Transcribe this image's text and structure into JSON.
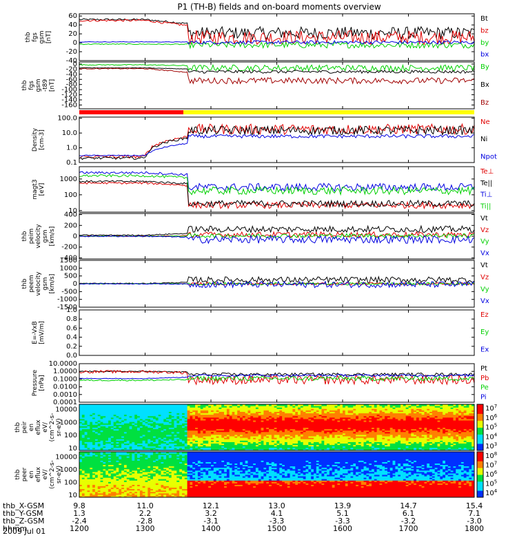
{
  "chart_data": {
    "title": "P1 (TH-B) fields and on-board moments overview",
    "date": "2009 Jul 01",
    "orbit_table": {
      "row_labels": [
        "thb_X-GSM",
        "thb_Y-GSM",
        "thb_Z-GSM",
        "hhmm"
      ],
      "columns": [
        [
          "9.8",
          "1.3",
          "-2.4",
          "1200"
        ],
        [
          "11.0",
          "2.2",
          "-2.8",
          "1300"
        ],
        [
          "12.1",
          "3.2",
          "-3.1",
          "1400"
        ],
        [
          "13.0",
          "4.1",
          "-3.3",
          "1500"
        ],
        [
          "13.9",
          "5.1",
          "-3.3",
          "1600"
        ],
        [
          "14.7",
          "6.1",
          "-3.2",
          "1700"
        ],
        [
          "15.4",
          "7.1",
          "-3.0",
          "1800"
        ]
      ]
    },
    "panels": [
      {
        "type": "line",
        "ylabel": [
          "thb",
          "fgs",
          "gsm",
          "[nT]"
        ],
        "yscale": "linear",
        "yticks": [
          "-40",
          "-20",
          "0",
          "20",
          "40",
          "60"
        ],
        "ylim": [
          -40,
          65
        ],
        "series": [
          {
            "name": "Bt",
            "color": "#000000",
            "quiet": 52,
            "active": 22,
            "noise": 14
          },
          {
            "name": "bz",
            "color": "#e00000",
            "quiet": 50,
            "active": 12,
            "noise": 16
          },
          {
            "name": "by",
            "color": "#00d000",
            "quiet": -3,
            "active": -5,
            "noise": 7
          },
          {
            "name": "bx",
            "color": "#0000e0",
            "quiet": 2,
            "active": 1,
            "noise": 4
          }
        ]
      },
      {
        "type": "line",
        "ylabel": [
          "thb",
          "fgs",
          "gsm",
          "-t89",
          "[nT]"
        ],
        "yscale": "linear",
        "yticks": [
          "-160",
          "-140",
          "-120",
          "-100",
          "-80",
          "-60",
          "-40",
          "-20",
          "0"
        ],
        "ylim": [
          -175,
          8
        ],
        "series": [
          {
            "name": "By",
            "color": "#00d000",
            "quiet": -3,
            "active": -15,
            "noise": 12
          },
          {
            "name": "Bx",
            "color": "#000000",
            "quiet": -15,
            "active": -30,
            "noise": 6
          },
          {
            "name": "Bz",
            "color": "#a00000",
            "quiet": -18,
            "active": -65,
            "noise": 12
          }
        ]
      },
      {
        "type": "line",
        "ylabel": [
          "Density",
          "[cm-3]"
        ],
        "yscale": "log",
        "yticks": [
          "0.1",
          "1.0",
          "10.0",
          "100.0"
        ],
        "ylim": [
          0.1,
          120
        ],
        "series": [
          {
            "name": "Ne",
            "color": "#e00000",
            "quiet": 0.25,
            "active": 18,
            "noise": 0.35
          },
          {
            "name": "Ni",
            "color": "#000000",
            "quiet": 0.2,
            "active": 15,
            "noise": 0.3
          },
          {
            "name": "Npot",
            "color": "#0000e0",
            "quiet": 0.3,
            "active": 6,
            "noise": 0.12
          }
        ]
      },
      {
        "type": "line",
        "ylabel": [
          "magt3",
          "[eV]"
        ],
        "yscale": "log",
        "yticks": [
          "10",
          "100",
          "1000"
        ],
        "ylim": [
          8,
          6000
        ],
        "series": [
          {
            "name": "Te⊥",
            "color": "#e00000",
            "quiet": 550,
            "active": 22,
            "noise": 0.2
          },
          {
            "name": "Te||",
            "color": "#000000",
            "quiet": 700,
            "active": 28,
            "noise": 0.2
          },
          {
            "name": "Ti⊥",
            "color": "#0000e0",
            "quiet": 2500,
            "active": 300,
            "noise": 0.25
          },
          {
            "name": "Ti||",
            "color": "#00d000",
            "quiet": 1600,
            "active": 180,
            "noise": 0.25
          }
        ]
      },
      {
        "type": "line",
        "ylabel": [
          "thb",
          "peim",
          "velocity",
          "gsm",
          "[km/s]"
        ],
        "yscale": "linear",
        "yticks": [
          "-400",
          "-200",
          "0",
          "200",
          "400"
        ],
        "ylim": [
          -420,
          420
        ],
        "series": [
          {
            "name": "Vt",
            "color": "#000000",
            "quiet": 20,
            "active": 130,
            "noise": 60
          },
          {
            "name": "Vz",
            "color": "#e00000",
            "quiet": 0,
            "active": 30,
            "noise": 50
          },
          {
            "name": "Vy",
            "color": "#00d000",
            "quiet": 0,
            "active": 10,
            "noise": 40
          },
          {
            "name": "Vx",
            "color": "#0000e0",
            "quiet": 0,
            "active": -60,
            "noise": 70
          }
        ]
      },
      {
        "type": "line",
        "ylabel": [
          "thb",
          "peem",
          "velocity",
          "gsm",
          "[km/s]"
        ],
        "yscale": "linear",
        "yticks": [
          "-1500",
          "-1000",
          "-500",
          "0",
          "500",
          "1000",
          "1500"
        ],
        "ylim": [
          -1500,
          1500
        ],
        "series": [
          {
            "name": "Vt",
            "color": "#000000",
            "quiet": 20,
            "active": 250,
            "noise": 200
          },
          {
            "name": "Vz",
            "color": "#e00000",
            "quiet": 0,
            "active": 0,
            "noise": 80
          },
          {
            "name": "Vy",
            "color": "#00d000",
            "quiet": 0,
            "active": 0,
            "noise": 80
          },
          {
            "name": "Vx",
            "color": "#0000e0",
            "quiet": 0,
            "active": -50,
            "noise": 200
          }
        ]
      },
      {
        "type": "line",
        "ylabel": [
          "E=-VxB",
          "[mV/m]"
        ],
        "yscale": "linear",
        "yticks": [
          "0.0",
          "0.2",
          "0.4",
          "0.6",
          "0.8",
          "1.0"
        ],
        "ylim": [
          0,
          1
        ],
        "series": [
          {
            "name": "Ez",
            "color": "#e00000"
          },
          {
            "name": "Ey",
            "color": "#00d000"
          },
          {
            "name": "Ex",
            "color": "#0000e0"
          }
        ]
      },
      {
        "type": "line",
        "ylabel": [
          "Pressure",
          "[nPa]"
        ],
        "yscale": "log",
        "yticks": [
          "0.0001",
          "0.0010",
          "0.0100",
          "0.1000",
          "1.0000",
          "10.0000"
        ],
        "ylim": [
          0.0001,
          10
        ],
        "series": [
          {
            "name": "Pt",
            "color": "#000000",
            "quiet": 1.0,
            "active": 0.4,
            "noise": 0.2
          },
          {
            "name": "Pb",
            "color": "#e00000",
            "quiet": 0.9,
            "active": 0.08,
            "noise": 0.6
          },
          {
            "name": "Pe",
            "color": "#00d000",
            "quiet": 0.07,
            "active": 0.12,
            "noise": 0.3
          },
          {
            "name": "Pi",
            "color": "#0000e0",
            "quiet": 0.12,
            "active": 0.3,
            "noise": 0.15
          }
        ]
      },
      {
        "type": "heatmap",
        "ylabel": [
          "thb",
          "peir",
          "en",
          "eflux",
          "eV/",
          "(cm^2-s-",
          "sr-eV)"
        ],
        "yscale": "log",
        "yticks": [
          "10",
          "100",
          "1000",
          "10000"
        ],
        "ylim": [
          7,
          25000
        ],
        "colorbar_ticks": [
          "10^3",
          "10^4",
          "10^5",
          "10^6",
          "10^7"
        ]
      },
      {
        "type": "heatmap",
        "ylabel": [
          "thb",
          "peer",
          "en",
          "eflux",
          "eV/",
          "(cm^2-s-",
          "sr-eV)"
        ],
        "yscale": "log",
        "yticks": [
          "10",
          "100",
          "1000",
          "10000"
        ],
        "ylim": [
          7,
          25000
        ],
        "colorbar_ticks": [
          "10^4",
          "10^5",
          "10^6",
          "10^7",
          "10^8"
        ]
      }
    ],
    "status_bar": {
      "colors": [
        "#ff0000",
        "#ffff00"
      ],
      "switch_hhmm": "1400"
    }
  }
}
